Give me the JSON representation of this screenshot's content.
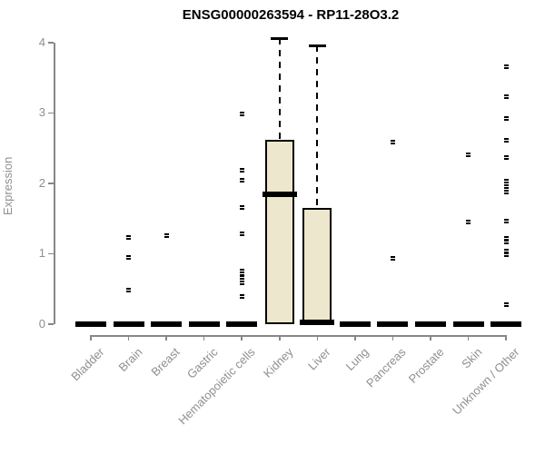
{
  "title": "ENSG00000263594 - RP11-28O3.2",
  "chart_data": {
    "type": "boxplot",
    "title": "ENSG00000263594 - RP11-28O3.2",
    "ylabel": "Expression",
    "xlabel": "",
    "ylim": [
      0,
      4
    ],
    "yticks": [
      0,
      1,
      2,
      3,
      4
    ],
    "grid": false,
    "whisker_style": "dashed",
    "categories": [
      "Bladder",
      "Brain",
      "Breast",
      "Gastric",
      "Hematopoietic cells",
      "Kidney",
      "Liver",
      "Lung",
      "Pancreas",
      "Prostate",
      "Skin",
      "Unknown / Other"
    ],
    "boxes": [
      {
        "category": "Bladder",
        "q1": 0,
        "median": 0,
        "q3": 0,
        "whisker_low": 0,
        "whisker_high": 0,
        "outliers": []
      },
      {
        "category": "Brain",
        "q1": 0,
        "median": 0,
        "q3": 0,
        "whisker_low": 0,
        "whisker_high": 0,
        "outliers": [
          1.23,
          0.95,
          0.49
        ]
      },
      {
        "category": "Breast",
        "q1": 0,
        "median": 0,
        "q3": 0,
        "whisker_low": 0,
        "whisker_high": 0,
        "outliers": [
          1.26
        ]
      },
      {
        "category": "Gastric",
        "q1": 0,
        "median": 0,
        "q3": 0,
        "whisker_low": 0,
        "whisker_high": 0,
        "outliers": []
      },
      {
        "category": "Hematopoietic cells",
        "q1": 0,
        "median": 0,
        "q3": 0,
        "whisker_low": 0,
        "whisker_high": 0,
        "outliers": [
          2.99,
          2.19,
          2.04,
          1.66,
          1.28,
          0.76,
          0.71,
          0.66,
          0.59,
          0.39
        ]
      },
      {
        "category": "Kidney",
        "q1": 0,
        "median": 1.85,
        "q3": 2.62,
        "whisker_low": 0,
        "whisker_high": 4.06,
        "outliers": []
      },
      {
        "category": "Liver",
        "q1": 0,
        "median": 0.02,
        "q3": 1.65,
        "whisker_low": 0,
        "whisker_high": 3.96,
        "outliers": []
      },
      {
        "category": "Lung",
        "q1": 0,
        "median": 0,
        "q3": 0,
        "whisker_low": 0,
        "whisker_high": 0,
        "outliers": []
      },
      {
        "category": "Pancreas",
        "q1": 0,
        "median": 0,
        "q3": 0,
        "whisker_low": 0,
        "whisker_high": 0,
        "outliers": [
          2.58,
          0.93
        ]
      },
      {
        "category": "Prostate",
        "q1": 0,
        "median": 0,
        "q3": 0,
        "whisker_low": 0,
        "whisker_high": 0,
        "outliers": []
      },
      {
        "category": "Skin",
        "q1": 0,
        "median": 0,
        "q3": 0,
        "whisker_low": 0,
        "whisker_high": 0,
        "outliers": [
          2.4,
          1.45
        ]
      },
      {
        "category": "Unknown / Other",
        "q1": 0,
        "median": 0,
        "q3": 0,
        "whisker_low": 0,
        "whisker_high": 0,
        "outliers": [
          3.65,
          3.23,
          2.92,
          2.61,
          2.36,
          2.03,
          1.96,
          1.88,
          1.47,
          1.22,
          1.17,
          1.04,
          0.99,
          0.28
        ]
      }
    ],
    "colors": {
      "box_fill": "#ede7cd",
      "box_border": "#000000",
      "median": "#000000",
      "whisker": "#000000",
      "outlier": "#000000",
      "axis_line": "#878787",
      "tick_label": "#8f8f8f",
      "title": "#000000",
      "background": "#ffffff"
    }
  }
}
